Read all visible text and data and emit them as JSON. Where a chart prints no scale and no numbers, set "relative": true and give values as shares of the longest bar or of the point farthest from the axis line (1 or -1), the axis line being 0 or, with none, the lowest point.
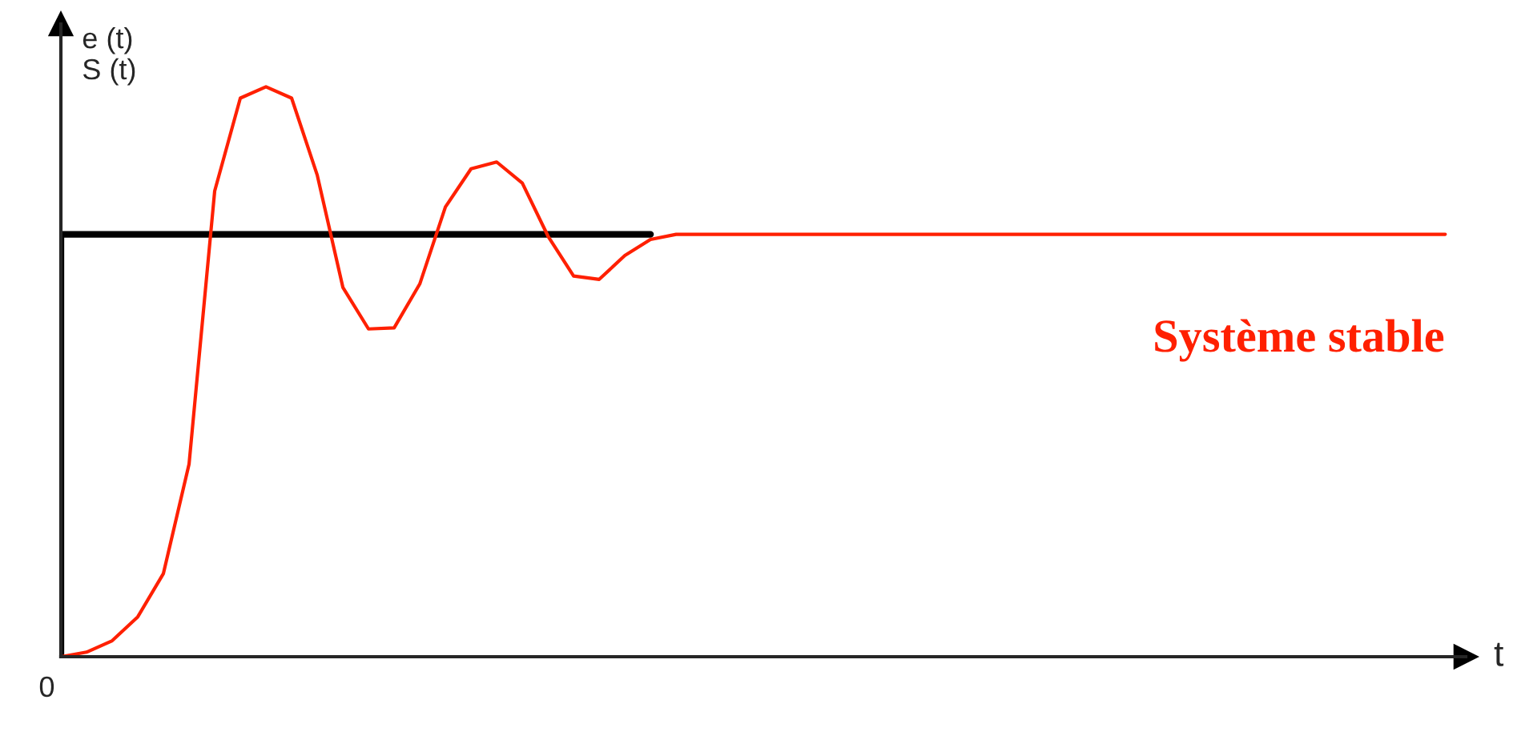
{
  "chart_data": {
    "type": "line",
    "relative": true,
    "xlabel": "t",
    "ylabel": "e (t)\nS (t)",
    "categories": [
      null,
      null,
      null,
      null,
      null,
      null,
      null,
      null,
      null,
      null,
      null,
      null,
      null,
      null,
      null,
      null,
      null,
      null,
      null,
      null,
      null,
      null,
      null,
      null,
      null,
      null,
      null,
      null,
      null,
      null,
      null,
      null,
      null,
      null,
      null,
      null,
      null,
      null,
      null,
      null,
      null,
      null,
      null,
      null,
      null,
      null,
      null,
      null,
      null,
      null,
      null,
      null,
      null,
      null,
      null
    ],
    "series": [
      {
        "type": "step",
        "color": "#000000",
        "values": [
          0,
          0.741,
          0.741,
          0.741,
          0.741,
          0.741,
          0.741,
          0.741,
          0.741,
          0.741,
          0.741,
          0.741,
          0.741,
          0.741,
          0.741,
          0.741,
          0.741,
          0.741,
          0.741,
          0.741,
          0.741,
          0.741,
          0.741,
          0.741,
          null,
          null,
          null,
          null,
          null,
          null,
          null,
          null,
          null,
          null,
          null,
          null,
          null,
          null,
          null,
          null,
          null,
          null,
          null,
          null,
          null,
          null,
          null,
          null,
          null,
          null,
          null,
          null,
          null,
          null,
          null
        ]
      },
      {
        "type": "line",
        "color": "#ff2000",
        "values": [
          0,
          0.008,
          0.028,
          0.07,
          0.146,
          0.338,
          0.817,
          0.98,
          1,
          0.98,
          0.845,
          0.648,
          0.575,
          0.577,
          0.654,
          0.789,
          0.856,
          0.868,
          0.831,
          0.738,
          0.668,
          0.662,
          0.704,
          0.732,
          0.741,
          0.741,
          0.741,
          0.741,
          0.741,
          0.741,
          0.741,
          0.741,
          0.741,
          0.741,
          0.741,
          0.741,
          0.741,
          0.741,
          0.741,
          0.741,
          0.741,
          0.741,
          0.741,
          0.741,
          0.741,
          0.741,
          0.741,
          0.741,
          0.741,
          0.741,
          0.741,
          0.741,
          0.741,
          0.741,
          0.741
        ]
      }
    ],
    "annotations": [
      "0",
      "Système stable"
    ],
    "legend": false
  }
}
